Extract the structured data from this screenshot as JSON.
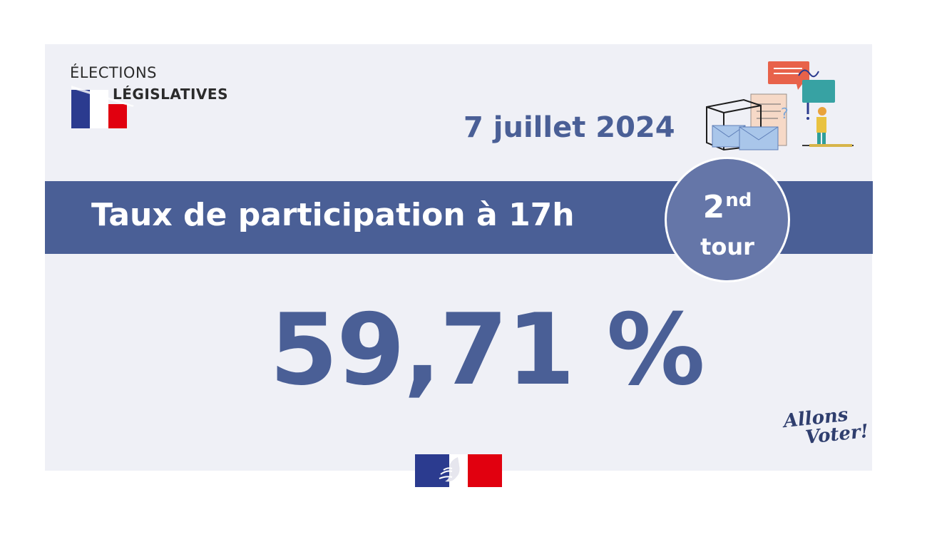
{
  "logo": {
    "line1": "ÉLECTIONS",
    "line2": "LÉGISLATIVES"
  },
  "date": "7 juillet 2024",
  "banner": {
    "title": "Taux de participation à 17h"
  },
  "badge": {
    "number": "2",
    "suffix": "nd",
    "word": "tour"
  },
  "participation": {
    "value_text": "59,71 %",
    "value": 59.71
  },
  "slogan": {
    "line1": "Allons",
    "line2": "Voter!"
  },
  "colors": {
    "primary": "#4a5f96",
    "badge": "#6576a8",
    "background": "#eff0f6",
    "flag_blue": "#2b3b8f",
    "flag_red": "#e1000f"
  },
  "icons": [
    "french-flag-icon",
    "voting-illustration-icon",
    "marianne-logo-icon"
  ]
}
